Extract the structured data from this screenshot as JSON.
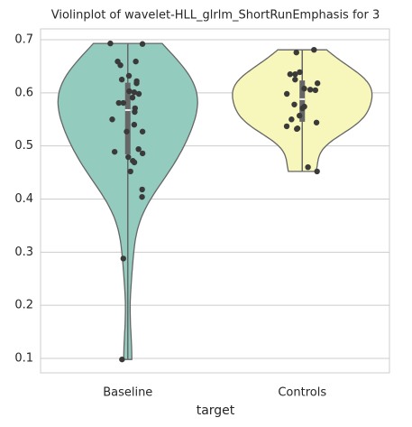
{
  "chart_data": {
    "type": "violin",
    "title": "Violinplot of wavelet-HLL_glrlm_ShortRunEmphasis for 3",
    "xlabel": "target",
    "categories": [
      "Baseline",
      "Controls"
    ],
    "groups": [
      {
        "color": "#93cbbf",
        "values": [
          0.693,
          0.692,
          0.652,
          0.659,
          0.659,
          0.632,
          0.625,
          0.618,
          0.622,
          0.603,
          0.601,
          0.591,
          0.598,
          0.581,
          0.581,
          0.571,
          0.564,
          0.55,
          0.54,
          0.527,
          0.527,
          0.494,
          0.489,
          0.479,
          0.486,
          0.469,
          0.472,
          0.452,
          0.418,
          0.404,
          0.288,
          0.098
        ]
      },
      {
        "color": "#f7f6bb",
        "values": [
          0.681,
          0.676,
          0.635,
          0.635,
          0.639,
          0.625,
          0.618,
          0.608,
          0.606,
          0.605,
          0.598,
          0.578,
          0.574,
          0.571,
          0.557,
          0.55,
          0.544,
          0.537,
          0.533,
          0.532,
          0.46,
          0.452
        ]
      }
    ],
    "ylim": [
      0.0728,
      0.7204
    ],
    "yticks": [
      0.1,
      0.2,
      0.3,
      0.4,
      0.5,
      0.6,
      0.7
    ],
    "grid": true
  }
}
